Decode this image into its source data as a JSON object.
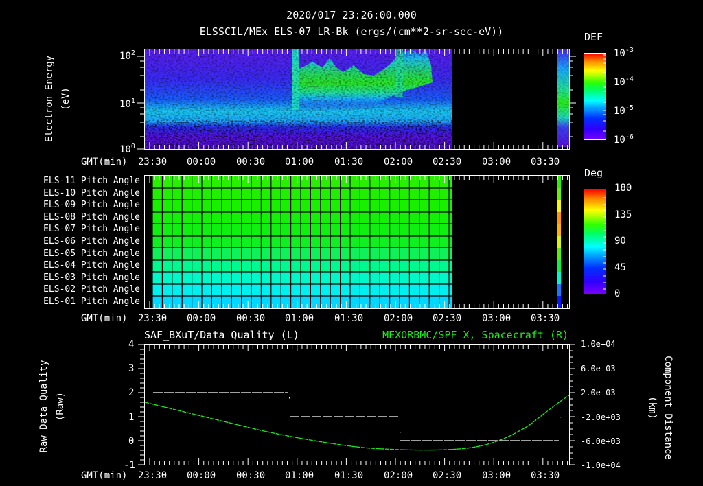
{
  "header": {
    "timestamp": "2020/017 23:26:00.000",
    "title": "ELSSCIL/MEx ELS-07 LR-Bk  (ergs/(cm**2-sr-sec-eV))"
  },
  "time_axis": {
    "label": "GMT(min)",
    "ticks": [
      "23:30",
      "00:00",
      "00:30",
      "01:00",
      "01:30",
      "02:00",
      "02:30",
      "03:00",
      "03:30"
    ]
  },
  "panel1": {
    "ylabel_line1": "Electron Energy",
    "ylabel_line2": "(eV)",
    "yticks": [
      {
        "base": "10",
        "exp": "2"
      },
      {
        "base": "10",
        "exp": "1"
      },
      {
        "base": "10",
        "exp": "0"
      }
    ],
    "colorbar": {
      "title": "DEF",
      "ticks": [
        {
          "base": "10",
          "exp": "-3"
        },
        {
          "base": "10",
          "exp": "-4"
        },
        {
          "base": "10",
          "exp": "-5"
        },
        {
          "base": "10",
          "exp": "-6"
        }
      ]
    }
  },
  "panel2": {
    "rows": [
      "ELS-11 Pitch Angle",
      "ELS-10 Pitch Angle",
      "ELS-09 Pitch Angle",
      "ELS-08 Pitch Angle",
      "ELS-07 Pitch Angle",
      "ELS-06 Pitch Angle",
      "ELS-05 Pitch Angle",
      "ELS-04 Pitch Angle",
      "ELS-03 Pitch Angle",
      "ELS-02 Pitch Angle",
      "ELS-01 Pitch Angle"
    ],
    "colorbar": {
      "title": "Deg",
      "ticks": [
        "180",
        "135",
        "90",
        "45",
        "0"
      ]
    }
  },
  "panel3": {
    "left_title": "SAF_BXuT/Data Quality (L)",
    "right_title": "MEXORBMC/SPF X, Spacecraft (R)",
    "ylabel_left_line1": "Raw Data Quality",
    "ylabel_left_line2": "(Raw)",
    "ylabel_right_line1": "Component Distance",
    "ylabel_right_line2": "(km)",
    "yticks_left": [
      "4",
      "3",
      "2",
      "1",
      "0",
      "-1"
    ],
    "yticks_right": [
      "1.0e+04",
      "6.0e+03",
      "2.0e+03",
      "-2.0e+03",
      "-6.0e+03",
      "-1.0e+04"
    ]
  },
  "chart_data": [
    {
      "type": "heatmap",
      "title": "ELSSCIL/MEx ELS-07 LR-Bk (ergs/(cm**2-sr-sec-eV))",
      "xlabel": "GMT(min)",
      "ylabel": "Electron Energy (eV)",
      "x_ticks": [
        "23:30",
        "00:00",
        "00:30",
        "01:00",
        "01:30",
        "02:00",
        "02:30",
        "03:00",
        "03:30"
      ],
      "y_scale": "log",
      "ylim": [
        1,
        150
      ],
      "colorbar": {
        "label": "DEF",
        "scale": "log",
        "range": [
          1e-06,
          0.001
        ]
      },
      "notes": "Background ~1e-6 to 1e-5; enhanced band 10-60 eV from ~00:57 to ~02:20 (~1e-4); data gap ~02:32-03:39; short segment ~03:39-03:42"
    },
    {
      "type": "heatmap",
      "title": "Pitch Angle",
      "categories": [
        "ELS-11",
        "ELS-10",
        "ELS-09",
        "ELS-08",
        "ELS-07",
        "ELS-06",
        "ELS-05",
        "ELS-04",
        "ELS-03",
        "ELS-02",
        "ELS-01"
      ],
      "x_ticks": [
        "23:30",
        "00:00",
        "00:30",
        "01:00",
        "01:30",
        "02:00",
        "02:30",
        "03:00",
        "03:30"
      ],
      "colorbar": {
        "label": "Deg",
        "range": [
          0,
          180
        ],
        "ticks": [
          0,
          45,
          90,
          135,
          180
        ]
      },
      "values_deg_first_segment": [
        100,
        100,
        100,
        100,
        100,
        98,
        90,
        80,
        65,
        55,
        50
      ],
      "values_deg_last_segment": [
        105,
        115,
        130,
        150,
        145,
        125,
        110,
        95,
        70,
        40,
        15
      ]
    },
    {
      "type": "line",
      "title": "SAF_BXuT/Data Quality (L) / MEXORBMC/SPF X, Spacecraft (R)",
      "x_ticks": [
        "23:30",
        "00:00",
        "00:30",
        "01:00",
        "01:30",
        "02:00",
        "02:30",
        "03:00",
        "03:30"
      ],
      "series": [
        {
          "name": "Data Quality (L)",
          "axis": "left",
          "x": [
            "23:33",
            "00:57",
            "00:58",
            "02:00",
            "02:01",
            "03:38"
          ],
          "values": [
            2,
            2,
            1,
            1,
            0,
            0
          ]
        },
        {
          "name": "SPF X (R)",
          "axis": "right",
          "x": [
            "23:30",
            "00:00",
            "00:30",
            "01:00",
            "01:30",
            "02:00",
            "02:30",
            "03:00",
            "03:30",
            "03:43"
          ],
          "values": [
            800,
            -1300,
            -3300,
            -5200,
            -6800,
            -7900,
            -8000,
            -6700,
            -1000,
            2400
          ]
        }
      ],
      "ylim_left": [
        -1,
        4
      ],
      "ylim_right": [
        -10000,
        10000
      ]
    }
  ]
}
